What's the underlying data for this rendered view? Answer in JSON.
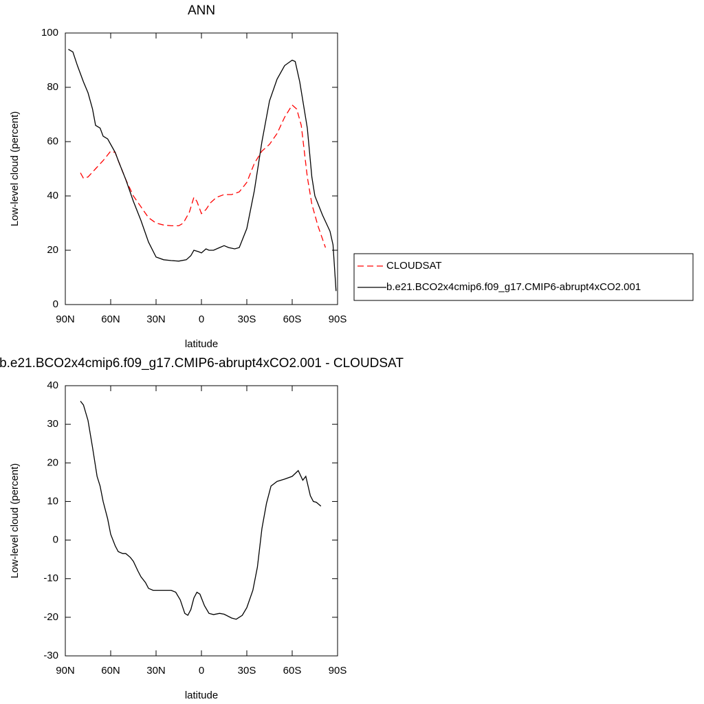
{
  "chart_data": [
    {
      "type": "line",
      "title": "ANN",
      "x_label": "latitude",
      "y_label": "Low-level cloud (percent)",
      "xlim": [
        90,
        -90
      ],
      "ylim": [
        0,
        100
      ],
      "xticks": [
        {
          "value": 90,
          "label": "90N"
        },
        {
          "value": 60,
          "label": "60N"
        },
        {
          "value": 30,
          "label": "30N"
        },
        0,
        {
          "value": -30,
          "label": "30S"
        },
        {
          "value": -60,
          "label": "60S"
        },
        {
          "value": -90,
          "label": "90S"
        }
      ],
      "yticks": [
        0,
        20,
        40,
        60,
        80,
        100
      ],
      "legend": "right",
      "series": [
        {
          "name": "CLOUDSAT",
          "color": "#ff0000",
          "dashed": true,
          "x": [
            80,
            78,
            75,
            70,
            65,
            60,
            57,
            55,
            50,
            45,
            40,
            35,
            30,
            25,
            20,
            15,
            12,
            8,
            5,
            3,
            0,
            -3,
            -6,
            -10,
            -15,
            -20,
            -25,
            -30,
            -35,
            -40,
            -45,
            -50,
            -55,
            -60,
            -63,
            -66,
            -70,
            -73,
            -77,
            -82
          ],
          "values": [
            48.5,
            46.5,
            47,
            50,
            53,
            56.5,
            56,
            53,
            46,
            40,
            36,
            32,
            30,
            29.3,
            29,
            29,
            30,
            34,
            39.5,
            38,
            33.5,
            35,
            37.5,
            39.5,
            40.5,
            40.5,
            41.5,
            45,
            52,
            56.5,
            59,
            63,
            69,
            73.5,
            72,
            66,
            47,
            37,
            29,
            21
          ]
        },
        {
          "name": "b.e21.BCO2x4cmip6.f09_g17.CMIP6-abrupt4xCO2.001",
          "color": "#000000",
          "dashed": false,
          "x": [
            88,
            85,
            82,
            78,
            75,
            72,
            70,
            67,
            65,
            62,
            60,
            57,
            55,
            50,
            45,
            40,
            35,
            30,
            25,
            20,
            15,
            10,
            7,
            5,
            2,
            0,
            -3,
            -5,
            -8,
            -12,
            -15,
            -18,
            -22,
            -25,
            -30,
            -35,
            -40,
            -45,
            -50,
            -55,
            -60,
            -62,
            -65,
            -70,
            -73,
            -75,
            -80,
            -85,
            -87,
            -89
          ],
          "values": [
            94,
            93,
            88,
            82,
            78,
            72,
            66,
            65,
            62,
            61,
            59,
            56,
            53,
            46,
            38,
            31,
            23,
            17.5,
            16.5,
            16.2,
            16,
            16.5,
            18,
            20,
            19.5,
            19,
            20.5,
            20,
            20,
            21,
            21.7,
            21,
            20.5,
            21,
            28,
            42,
            60,
            75,
            83,
            88,
            90,
            89.5,
            82,
            65,
            47,
            40,
            33,
            27,
            22,
            5
          ]
        }
      ]
    },
    {
      "type": "line",
      "title": "b.e21.BCO2x4cmip6.f09_g17.CMIP6-abrupt4xCO2.001 - CLOUDSAT",
      "x_label": "latitude",
      "y_label": "Low-level cloud (percent)",
      "xlim": [
        90,
        -90
      ],
      "ylim": [
        -30,
        40
      ],
      "xticks": [
        {
          "value": 90,
          "label": "90N"
        },
        {
          "value": 60,
          "label": "60N"
        },
        {
          "value": 30,
          "label": "30N"
        },
        0,
        {
          "value": -30,
          "label": "30S"
        },
        {
          "value": -60,
          "label": "60S"
        },
        {
          "value": -90,
          "label": "90S"
        }
      ],
      "yticks": [
        -30,
        -20,
        -10,
        0,
        10,
        20,
        30,
        40
      ],
      "color": "#000000",
      "x": [
        80,
        78,
        75,
        72,
        69,
        67,
        65,
        62,
        60,
        57,
        55,
        52,
        50,
        47,
        45,
        42,
        40,
        37,
        35,
        32,
        30,
        25,
        20,
        17,
        14,
        11,
        9,
        7,
        5,
        3,
        1,
        -2,
        -5,
        -8,
        -12,
        -15,
        -20,
        -23,
        -27,
        -30,
        -34,
        -37,
        -40,
        -43,
        -46,
        -50,
        -55,
        -60,
        -64,
        -67,
        -69,
        -72,
        -74,
        -76,
        -79
      ],
      "values": [
        36,
        35,
        31,
        24,
        16.5,
        14,
        10,
        5.5,
        1.5,
        -1.5,
        -3,
        -3.5,
        -3.5,
        -4.5,
        -5.5,
        -8,
        -9.5,
        -11,
        -12.5,
        -13,
        -13,
        -13,
        -13,
        -13.5,
        -15.5,
        -19,
        -19.5,
        -18,
        -15,
        -13.5,
        -14,
        -17,
        -19,
        -19.3,
        -19,
        -19.2,
        -20.2,
        -20.5,
        -19.5,
        -17.5,
        -13,
        -7,
        3,
        9.5,
        14,
        15.2,
        15.8,
        16.5,
        18,
        15.5,
        16.5,
        11.5,
        10,
        9.8,
        8.8
      ]
    }
  ]
}
